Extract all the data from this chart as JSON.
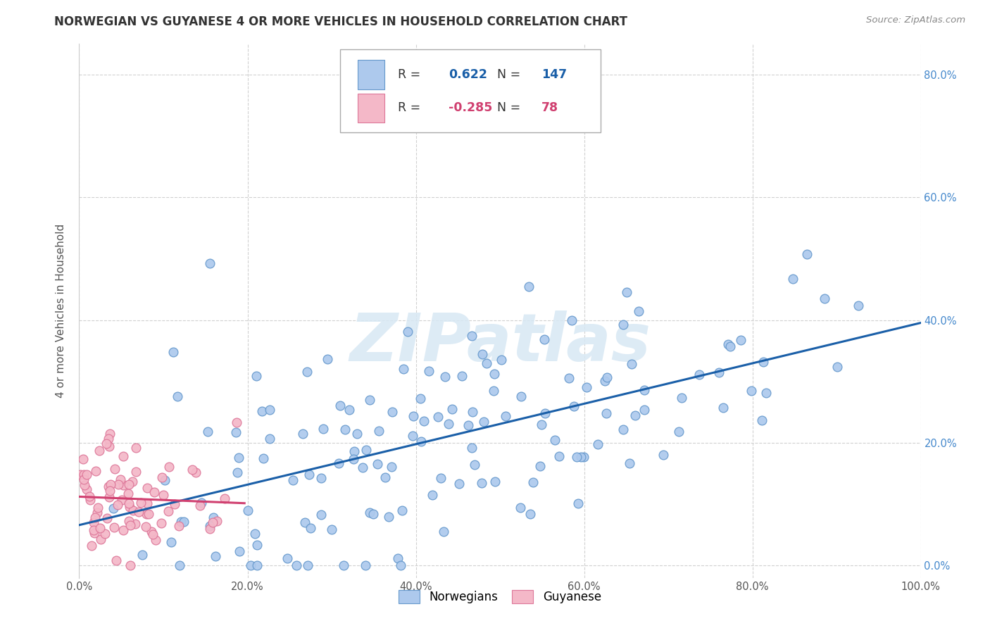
{
  "title": "NORWEGIAN VS GUYANESE 4 OR MORE VEHICLES IN HOUSEHOLD CORRELATION CHART",
  "source": "Source: ZipAtlas.com",
  "ylabel": "4 or more Vehicles in Household",
  "xlim": [
    0,
    1.0
  ],
  "ylim": [
    -0.02,
    0.85
  ],
  "xticks": [
    0.0,
    0.2,
    0.4,
    0.6,
    0.8,
    1.0
  ],
  "xtick_labels": [
    "0.0%",
    "20.0%",
    "40.0%",
    "60.0%",
    "80.0%",
    "100.0%"
  ],
  "yticks": [
    0.0,
    0.2,
    0.4,
    0.6,
    0.8
  ],
  "ytick_labels": [
    "0.0%",
    "20.0%",
    "40.0%",
    "60.0%",
    "80.0%"
  ],
  "norwegian_color": "#adc9ed",
  "norwegian_edge": "#6699cc",
  "guyanese_color": "#f4b8c8",
  "guyanese_edge": "#dd7799",
  "line_norwegian_color": "#1a5fa8",
  "line_guyanese_color": "#d04070",
  "watermark_color": "#d8e8f4",
  "norwegian_R": 0.622,
  "norwegian_N": 147,
  "guyanese_R": -0.285,
  "guyanese_N": 78,
  "watermark": "ZIPatlas",
  "legend_bottom_labels": [
    "Norwegians",
    "Guyanese"
  ],
  "title_fontsize": 12,
  "axis_label_fontsize": 11,
  "tick_fontsize": 10.5,
  "legend_fontsize": 12
}
